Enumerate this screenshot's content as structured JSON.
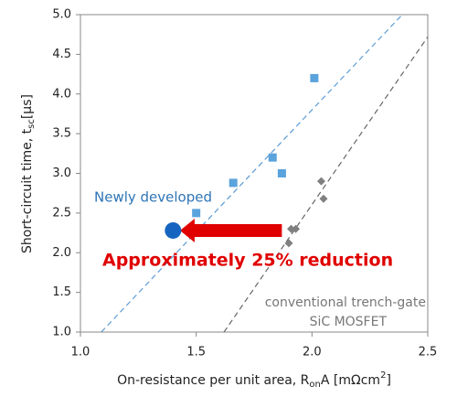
{
  "chart_data": {
    "type": "scatter",
    "x_label": [
      "On-resistance per unit area, R",
      "on",
      "A [mΩcm",
      "2",
      "]"
    ],
    "y_label": [
      "Short-circuit time, t",
      "sc",
      "[μs]"
    ],
    "xlim": [
      1.0,
      2.5
    ],
    "xticks": [
      {
        "value": 1.0,
        "label": "1.0"
      },
      1.5,
      {
        "value": 2.0,
        "label": "2.0"
      },
      2.5
    ],
    "ylim": [
      1.0,
      5.0
    ],
    "yticks": [
      {
        "value": 1.0,
        "label": "1.0"
      },
      1.5,
      {
        "value": 2.0,
        "label": "2.0"
      },
      2.5,
      {
        "value": 3.0,
        "label": "3.0"
      },
      3.5,
      {
        "value": 4.0,
        "label": "4.0"
      },
      4.5,
      {
        "value": 5.0,
        "label": "5.0"
      }
    ],
    "grid": false,
    "series": [
      {
        "marker": "square",
        "color": "#5ba3dc",
        "x": [
          1.5,
          1.66,
          1.83,
          1.87,
          2.01
        ],
        "values": [
          2.5,
          2.88,
          3.2,
          3.0,
          4.2
        ]
      },
      {
        "marker": "diamond",
        "color": "#7f7f7f",
        "x": [
          1.9,
          1.91,
          1.93,
          2.04,
          2.05
        ],
        "values": [
          2.12,
          2.3,
          2.3,
          2.9,
          2.68
        ]
      },
      {
        "marker": "circle",
        "color": "#1565c0",
        "x": [
          1.4
        ],
        "values": [
          2.28
        ]
      }
    ],
    "trend_lines": [
      {
        "color": "#5b9bd5",
        "x": [
          1.09,
          2.39
        ],
        "values": [
          1.0,
          5.0
        ]
      },
      {
        "color": "#666666",
        "x": [
          1.62,
          2.5
        ],
        "values": [
          1.0,
          4.72
        ]
      }
    ],
    "arrow": {
      "color": "#e00000",
      "x": [
        1.87,
        1.43
      ],
      "values": [
        2.28,
        2.28
      ]
    },
    "annotations": [
      "Newly developed",
      "Approximately 25% reduction",
      "conventional trench-gate",
      "SiC MOSFET"
    ]
  }
}
